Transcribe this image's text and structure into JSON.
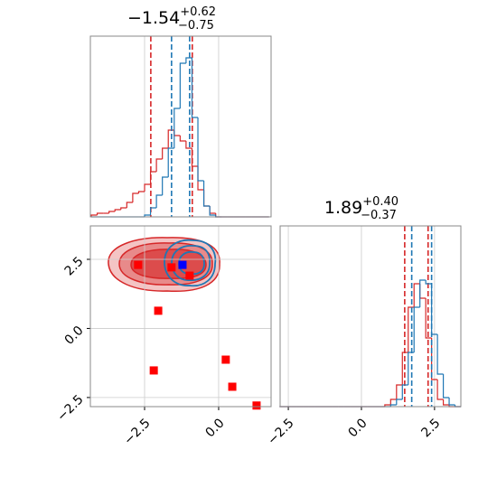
{
  "chart_data": [
    {
      "type": "histogram",
      "title": {
        "value": "−1.54",
        "upper": "+0.62",
        "lower": "−0.75"
      },
      "xlim": [
        -4.33,
        1.77
      ],
      "ylim": [
        0,
        100
      ],
      "xticks": [
        -2.5,
        0
      ],
      "grid": true,
      "bins": [
        -4.3,
        -4.1,
        -3.9,
        -3.7,
        -3.5,
        -3.3,
        -3.1,
        -2.9,
        -2.7,
        -2.5,
        -2.3,
        -2.1,
        -1.9,
        -1.7,
        -1.5,
        -1.3,
        -1.1,
        -0.9,
        -0.7,
        -0.5,
        -0.3,
        -0.1,
        0.1,
        0.3,
        0.5,
        0.7,
        0.9,
        1.1,
        1.3,
        1.5,
        1.7
      ],
      "series": [
        {
          "color": "#d62728",
          "values": [
            1,
            2,
            2,
            3,
            4,
            5,
            8,
            13,
            14,
            18,
            25,
            32,
            38,
            48,
            45,
            42,
            38,
            28,
            15,
            6,
            2,
            0,
            0,
            0,
            0,
            0,
            0,
            0,
            0,
            0
          ],
          "quantiles": [
            -2.29,
            -0.89
          ]
        },
        {
          "color": "#1f77b4",
          "values": [
            0,
            0,
            0,
            0,
            0,
            0,
            0,
            0,
            0,
            1,
            5,
            12,
            22,
            38,
            60,
            85,
            88,
            55,
            20,
            6,
            1,
            0,
            0,
            0,
            0,
            0,
            0,
            0,
            0,
            0
          ],
          "quantiles": [
            -1.59,
            -0.98
          ]
        }
      ]
    },
    {
      "type": "scatter",
      "xlim": [
        -4.33,
        1.77
      ],
      "ylim": [
        -2.83,
        3.71
      ],
      "xticks": [
        {
          "value": -2.5,
          "label": "−2.5"
        },
        {
          "value": 0,
          "label": "0.0"
        }
      ],
      "yticks": [
        {
          "value": -2.5,
          "label": "−2.5"
        },
        {
          "value": 0,
          "label": "0.0"
        },
        2.5
      ],
      "grid": true,
      "series": [
        {
          "color": "#ff0000",
          "x": [
            -2.72,
            -2.04,
            -2.19,
            0.24,
            0.46,
            1.28,
            -1.59,
            -0.98
          ],
          "values": [
            2.3,
            0.64,
            -1.52,
            -1.13,
            -2.11,
            -2.79,
            2.21,
            1.91
          ]
        },
        {
          "color": "#0000ff",
          "x": [
            -1.22
          ],
          "values": [
            2.3
          ]
        }
      ]
    },
    {
      "type": "histogram",
      "title": {
        "value": "1.89",
        "upper": "+0.40",
        "lower": "−0.37"
      },
      "xlim": [
        -2.78,
        3.4
      ],
      "ylim": [
        0,
        100
      ],
      "xticks": [
        {
          "value": -2.5,
          "label": "−2.5"
        },
        {
          "value": 0,
          "label": "0.0"
        },
        2.5
      ],
      "grid": true,
      "bins": [
        -2.8,
        -2.6,
        -2.4,
        -2.2,
        -2.0,
        -1.8,
        -1.6,
        -1.4,
        -1.2,
        -1.0,
        -0.8,
        -0.6,
        -0.4,
        -0.2,
        0.0,
        0.2,
        0.4,
        0.6,
        0.8,
        1.0,
        1.2,
        1.4,
        1.6,
        1.8,
        2.0,
        2.2,
        2.4,
        2.6,
        2.8,
        3.0,
        3.2,
        3.4
      ],
      "series": [
        {
          "color": "#d62728",
          "values": [
            0,
            0,
            0,
            0,
            0,
            0,
            0,
            0,
            0,
            0,
            0,
            0,
            0,
            0,
            0,
            0,
            0,
            0,
            1,
            4,
            12,
            30,
            55,
            68,
            60,
            38,
            15,
            4,
            1,
            0,
            0
          ],
          "quantiles": [
            1.48,
            2.28
          ]
        },
        {
          "color": "#1f77b4",
          "values": [
            0,
            0,
            0,
            0,
            0,
            0,
            0,
            0,
            0,
            0,
            0,
            0,
            0,
            0,
            0,
            0,
            0,
            0,
            0,
            1,
            4,
            12,
            30,
            55,
            70,
            68,
            40,
            18,
            5,
            1,
            0
          ],
          "quantiles": [
            1.72,
            2.4
          ]
        }
      ]
    }
  ]
}
